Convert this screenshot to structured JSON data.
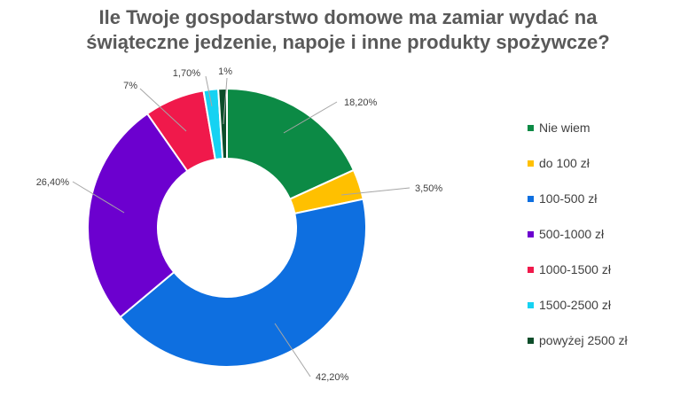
{
  "chart_data": {
    "type": "pie",
    "variant": "doughnut",
    "title_lines": [
      "Ile  Twoje gospodarstwo domowe ma zamiar wydać na",
      "świąteczne jedzenie, napoje i inne produkty spożywcze?"
    ],
    "categories": [
      "Nie wiem",
      "do 100 zł",
      "100-500 zł",
      "500-1000 zł",
      "1000-1500 zł",
      "1500-2500 zł",
      "powyżej 2500 zł"
    ],
    "values": [
      18.2,
      3.5,
      42.2,
      26.4,
      7,
      1.7,
      1
    ],
    "data_labels": [
      "18,20%",
      "3,50%",
      "42,20%",
      "26,40%",
      "7%",
      "1,70%",
      "1%"
    ],
    "colors": [
      "#0C8A45",
      "#FFC000",
      "#0E6FE0",
      "#6C00CF",
      "#F0194B",
      "#16D2F2",
      "#0D4D2A"
    ],
    "legend_position": "right"
  }
}
